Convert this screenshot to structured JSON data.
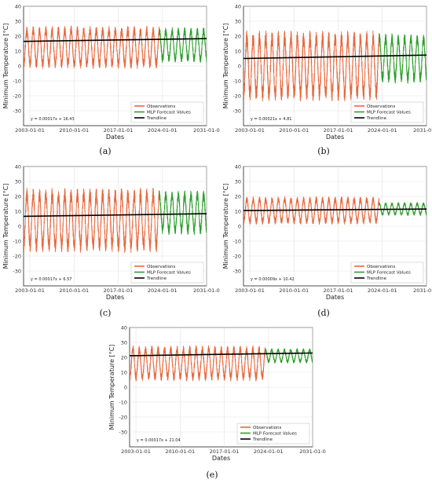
{
  "chart_data": [
    {
      "panel": "(a)",
      "type": "line",
      "xlabel": "Dates",
      "ylabel": "Minimum Temperature [°C]",
      "ylim": [
        -40,
        40
      ],
      "yticks": [
        -30,
        -20,
        -10,
        0,
        10,
        20,
        30,
        40
      ],
      "xlim": [
        "2002-01-01",
        "2031-01-01"
      ],
      "xticks": [
        "2003-01-01",
        "2010-01-01",
        "2017-01-01",
        "2024-01-01",
        "2031-01-0"
      ],
      "grid": true,
      "legend_position": "lower-right",
      "series": [
        {
          "name": "Observations",
          "color": "#e8683e",
          "x_range": [
            "2002-01-01",
            "2023-06-30"
          ],
          "y_max": 27,
          "y_min": -2
        },
        {
          "name": "MLP Forecast Values",
          "color": "#2ca02c",
          "x_range": [
            "2023-06-30",
            "2030-12-31"
          ],
          "y_max": 26,
          "y_min": 2
        },
        {
          "name": "Trendline",
          "color": "#000000",
          "x": [
            "2002-01-01",
            "2031-01-01"
          ],
          "y": [
            16.5,
            18.3
          ]
        }
      ],
      "annotation": "y = 0.00017x + 16.43"
    },
    {
      "panel": "(b)",
      "type": "line",
      "xlabel": "Dates",
      "ylabel": "Minimum Temperature [°C]",
      "ylim": [
        -40,
        40
      ],
      "yticks": [
        -30,
        -20,
        -10,
        0,
        10,
        20,
        30,
        40
      ],
      "xlim": [
        "2002-01-01",
        "2031-01-01"
      ],
      "xticks": [
        "2003-01-01",
        "2010-01-01",
        "2017-01-01",
        "2024-01-01",
        "2031-01-0"
      ],
      "grid": true,
      "legend_position": "lower-right",
      "series": [
        {
          "name": "Observations",
          "color": "#e8683e",
          "x_range": [
            "2002-01-01",
            "2023-06-30"
          ],
          "y_max": 24,
          "y_min": -24
        },
        {
          "name": "MLP Forecast Values",
          "color": "#2ca02c",
          "x_range": [
            "2023-06-30",
            "2030-12-31"
          ],
          "y_max": 22,
          "y_min": -12
        },
        {
          "name": "Trendline",
          "color": "#000000",
          "x": [
            "2002-01-01",
            "2031-01-01"
          ],
          "y": [
            5.0,
            7.3
          ]
        }
      ],
      "annotation": "y = 0.00021x + 4.81"
    },
    {
      "panel": "(c)",
      "type": "line",
      "xlabel": "Dates",
      "ylabel": "Minimum Temperature [°C]",
      "ylim": [
        -40,
        40
      ],
      "yticks": [
        -30,
        -20,
        -10,
        0,
        10,
        20,
        30,
        40
      ],
      "xlim": [
        "2002-01-01",
        "2031-01-01"
      ],
      "xticks": [
        "2003-01-01",
        "2010-01-01",
        "2017-01-01",
        "2024-01-01",
        "2031-01-0"
      ],
      "grid": true,
      "legend_position": "lower-right",
      "series": [
        {
          "name": "Observations",
          "color": "#e8683e",
          "x_range": [
            "2002-01-01",
            "2023-06-30"
          ],
          "y_max": 26,
          "y_min": -18
        },
        {
          "name": "MLP Forecast Values",
          "color": "#2ca02c",
          "x_range": [
            "2023-06-30",
            "2030-12-31"
          ],
          "y_max": 24,
          "y_min": -6
        },
        {
          "name": "Trendline",
          "color": "#000000",
          "x": [
            "2002-01-01",
            "2031-01-01"
          ],
          "y": [
            6.6,
            8.4
          ]
        }
      ],
      "annotation": "y = 0.00017x + 6.57"
    },
    {
      "panel": "(d)",
      "type": "line",
      "xlabel": "Dates",
      "ylabel": "Minimum Temperature [°C]",
      "ylim": [
        -40,
        40
      ],
      "yticks": [
        -30,
        -20,
        -10,
        0,
        10,
        20,
        30,
        40
      ],
      "xlim": [
        "2002-01-01",
        "2031-01-01"
      ],
      "xticks": [
        "2003-01-01",
        "2010-01-01",
        "2017-01-01",
        "2024-01-01",
        "2031-01-0"
      ],
      "grid": true,
      "legend_position": "lower-right",
      "series": [
        {
          "name": "Observations",
          "color": "#e8683e",
          "x_range": [
            "2002-01-01",
            "2023-06-30"
          ],
          "y_max": 20,
          "y_min": 1
        },
        {
          "name": "MLP Forecast Values",
          "color": "#2ca02c",
          "x_range": [
            "2023-06-30",
            "2030-12-31"
          ],
          "y_max": 16,
          "y_min": 7
        },
        {
          "name": "Trendline",
          "color": "#000000",
          "x": [
            "2002-01-01",
            "2031-01-01"
          ],
          "y": [
            10.5,
            11.5
          ]
        }
      ],
      "annotation": "y = 0.00009x + 10.42"
    },
    {
      "panel": "(e)",
      "type": "line",
      "xlabel": "Dates",
      "ylabel": "Minimum Temperature [°C]",
      "ylim": [
        -40,
        40
      ],
      "yticks": [
        -30,
        -20,
        -10,
        0,
        10,
        20,
        30,
        40
      ],
      "xlim": [
        "2002-01-01",
        "2031-01-01"
      ],
      "xticks": [
        "2003-01-01",
        "2010-01-01",
        "2017-01-01",
        "2024-01-01",
        "2031-01-0"
      ],
      "grid": true,
      "legend_position": "lower-right",
      "series": [
        {
          "name": "Observations",
          "color": "#e8683e",
          "x_range": [
            "2002-01-01",
            "2023-06-30"
          ],
          "y_max": 28,
          "y_min": 4
        },
        {
          "name": "MLP Forecast Values",
          "color": "#2ca02c",
          "x_range": [
            "2023-06-30",
            "2030-12-31"
          ],
          "y_max": 26,
          "y_min": 16
        },
        {
          "name": "Trendline",
          "color": "#000000",
          "x": [
            "2002-01-01",
            "2031-01-01"
          ],
          "y": [
            21.1,
            22.9
          ]
        }
      ],
      "annotation": "y = 0.00017x + 21.04"
    }
  ]
}
